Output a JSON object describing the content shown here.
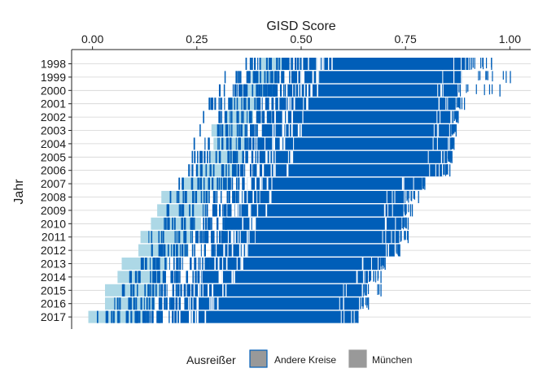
{
  "chart_data": {
    "type": "bar",
    "title": "",
    "xlabel": "GISD Score",
    "ylabel": "Jahr",
    "xlim": [
      -0.05,
      1.05
    ],
    "x_ticks": [
      0.0,
      0.25,
      0.5,
      0.75,
      1.0
    ],
    "x_tick_labels": [
      "0.00",
      "0.25",
      "0.50",
      "0.75",
      "1.00"
    ],
    "x_axis_position": "top",
    "grid": "horizontal",
    "categories": [
      "1998",
      "1999",
      "2000",
      "2001",
      "2002",
      "2003",
      "2004",
      "2005",
      "2006",
      "2007",
      "2008",
      "2009",
      "2010",
      "2011",
      "2012",
      "2013",
      "2014",
      "2015",
      "2016",
      "2017"
    ],
    "series": [
      {
        "name": "Andere Kreise",
        "color": "#005EB8",
        "dense_start": [
          0.5,
          0.48,
          0.46,
          0.44,
          0.43,
          0.42,
          0.41,
          0.4,
          0.39,
          0.37,
          0.35,
          0.34,
          0.32,
          0.31,
          0.3,
          0.28,
          0.26,
          0.24,
          0.22,
          0.19
        ],
        "dense_end": [
          0.905,
          0.885,
          0.875,
          0.87,
          0.865,
          0.86,
          0.86,
          0.85,
          0.84,
          0.79,
          0.75,
          0.745,
          0.74,
          0.735,
          0.725,
          0.69,
          0.66,
          0.65,
          0.64,
          0.63
        ],
        "sparse_start": [
          0.33,
          0.31,
          0.29,
          0.27,
          0.26,
          0.25,
          0.24,
          0.23,
          0.22,
          0.2,
          0.17,
          0.16,
          0.14,
          0.13,
          0.12,
          0.1,
          0.08,
          0.06,
          0.05,
          0.01
        ],
        "tail_max": [
          0.955,
          1.0,
          0.975,
          0.89,
          0.875,
          0.87,
          0.865,
          0.86,
          0.855,
          0.795,
          0.78,
          0.765,
          0.755,
          0.755,
          0.735,
          0.7,
          0.69,
          0.69,
          0.66,
          0.635
        ]
      },
      {
        "name": "München",
        "color": "#ADD8E6",
        "start": [
          0.4,
          0.38,
          0.36,
          0.335,
          0.32,
          0.285,
          0.29,
          0.28,
          0.25,
          0.215,
          0.165,
          0.155,
          0.14,
          0.115,
          0.11,
          0.07,
          0.06,
          0.03,
          0.03,
          -0.01
        ],
        "end": [
          0.455,
          0.435,
          0.415,
          0.395,
          0.385,
          0.37,
          0.37,
          0.36,
          0.35,
          0.33,
          0.28,
          0.27,
          0.26,
          0.24,
          0.23,
          0.18,
          0.17,
          0.16,
          0.15,
          0.12
        ]
      }
    ],
    "legend": {
      "title": "Ausreißer",
      "position": "bottom",
      "items": [
        {
          "label": "Andere Kreise",
          "fill": "#999999",
          "border": "#005EB8"
        },
        {
          "label": "München",
          "fill": "#999999",
          "border": "#999999"
        }
      ]
    }
  }
}
